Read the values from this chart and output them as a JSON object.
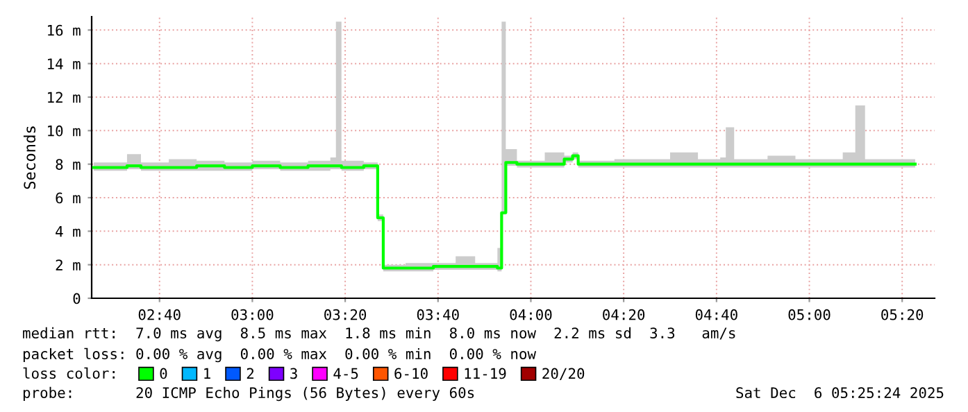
{
  "chart_data": {
    "type": "step",
    "ylabel": "Seconds",
    "legend_title": "loss color:",
    "legend": "bottom",
    "grid": true,
    "line_style": "solid",
    "marker": "none",
    "xlim": [
      2.423,
      5.45
    ],
    "ylim": [
      0,
      16.8
    ],
    "xticks": [
      {
        "value": 2.6667,
        "label": "02:40"
      },
      {
        "value": 3.0,
        "label": "03:00"
      },
      {
        "value": 3.3333,
        "label": "03:20"
      },
      {
        "value": 3.6667,
        "label": "03:40"
      },
      {
        "value": 4.0,
        "label": "04:00"
      },
      {
        "value": 4.3333,
        "label": "04:20"
      },
      {
        "value": 4.6667,
        "label": "04:40"
      },
      {
        "value": 5.0,
        "label": "05:00"
      },
      {
        "value": 5.3333,
        "label": "05:20"
      }
    ],
    "yticks": [
      0,
      {
        "value": 2,
        "label": "2 m"
      },
      {
        "value": 4,
        "label": "4 m"
      },
      {
        "value": 6,
        "label": "6 m"
      },
      {
        "value": 8,
        "label": "8 m"
      },
      {
        "value": 10,
        "label": "10 m"
      },
      {
        "value": 12,
        "label": "12 m"
      },
      {
        "value": 14,
        "label": "14 m"
      },
      {
        "value": 16,
        "label": "16 m"
      }
    ],
    "x": [
      2.43,
      2.5,
      2.55,
      2.6,
      2.7,
      2.8,
      2.9,
      3.0,
      3.1,
      3.2,
      3.28,
      3.3,
      3.32,
      3.4,
      3.45,
      3.47,
      3.55,
      3.65,
      3.73,
      3.8,
      3.88,
      3.895,
      3.91,
      3.95,
      4.05,
      4.12,
      4.15,
      4.17,
      4.3,
      4.4,
      4.5,
      4.6,
      4.68,
      4.7,
      4.73,
      4.85,
      4.95,
      5.05,
      5.12,
      5.165,
      5.2,
      5.3,
      5.38
    ],
    "series": [
      {
        "name": "0",
        "color": "#00ff00",
        "values": [
          7.8,
          7.8,
          7.9,
          7.8,
          7.8,
          7.9,
          7.8,
          7.9,
          7.8,
          7.9,
          7.9,
          7.9,
          7.8,
          7.9,
          4.8,
          1.8,
          1.8,
          1.9,
          1.9,
          1.9,
          1.8,
          5.1,
          8.1,
          8.0,
          8.0,
          8.3,
          8.5,
          8.0,
          8.0,
          8.0,
          8.0,
          8.0,
          8.0,
          8.0,
          8.0,
          8.0,
          8.0,
          8.0,
          8.0,
          8.0,
          8.0,
          8.0,
          8.0
        ],
        "lower": [
          7.6,
          7.6,
          7.7,
          7.6,
          7.6,
          7.6,
          7.6,
          7.7,
          7.6,
          7.6,
          7.7,
          7.7,
          7.6,
          7.7,
          4.6,
          1.6,
          1.6,
          1.7,
          1.7,
          1.7,
          1.6,
          5.0,
          7.9,
          7.8,
          7.8,
          8.1,
          8.3,
          7.8,
          7.8,
          7.8,
          7.8,
          7.8,
          7.8,
          7.8,
          7.8,
          7.8,
          7.8,
          7.8,
          7.8,
          7.8,
          7.8,
          7.8,
          7.8
        ],
        "upper": [
          8.1,
          8.1,
          8.6,
          8.1,
          8.3,
          8.2,
          8.1,
          8.2,
          8.1,
          8.2,
          8.4,
          16.5,
          8.2,
          8.1,
          5.0,
          2.0,
          2.1,
          2.1,
          2.5,
          2.1,
          3.0,
          16.5,
          8.9,
          8.2,
          8.7,
          8.5,
          8.7,
          8.2,
          8.3,
          8.3,
          8.7,
          8.3,
          8.4,
          10.2,
          8.3,
          8.5,
          8.3,
          8.3,
          8.7,
          11.5,
          8.3,
          8.3,
          8.2
        ]
      },
      {
        "name": "1",
        "color": "#00b8ff",
        "values": [
          null,
          null,
          null,
          null,
          null,
          null,
          null,
          null,
          null,
          null,
          null,
          null,
          null,
          null,
          null,
          null,
          null,
          null,
          null,
          null,
          null,
          null,
          null,
          null,
          null,
          null,
          null,
          null,
          null,
          null,
          null,
          null,
          null,
          null,
          null,
          null,
          null,
          null,
          null,
          null,
          null,
          null,
          null
        ]
      },
      {
        "name": "2",
        "color": "#0059ff",
        "values": [
          null,
          null,
          null,
          null,
          null,
          null,
          null,
          null,
          null,
          null,
          null,
          null,
          null,
          null,
          null,
          null,
          null,
          null,
          null,
          null,
          null,
          null,
          null,
          null,
          null,
          null,
          null,
          null,
          null,
          null,
          null,
          null,
          null,
          null,
          null,
          null,
          null,
          null,
          null,
          null,
          null,
          null,
          null
        ]
      },
      {
        "name": "3",
        "color": "#7e00ff",
        "values": [
          null,
          null,
          null,
          null,
          null,
          null,
          null,
          null,
          null,
          null,
          null,
          null,
          null,
          null,
          null,
          null,
          null,
          null,
          null,
          null,
          null,
          null,
          null,
          null,
          null,
          null,
          null,
          null,
          null,
          null,
          null,
          null,
          null,
          null,
          null,
          null,
          null,
          null,
          null,
          null,
          null,
          null,
          null
        ]
      },
      {
        "name": "4-5",
        "color": "#ff00ff",
        "values": [
          null,
          null,
          null,
          null,
          null,
          null,
          null,
          null,
          null,
          null,
          null,
          null,
          null,
          null,
          null,
          null,
          null,
          null,
          null,
          null,
          null,
          null,
          null,
          null,
          null,
          null,
          null,
          null,
          null,
          null,
          null,
          null,
          null,
          null,
          null,
          null,
          null,
          null,
          null,
          null,
          null,
          null,
          null
        ]
      },
      {
        "name": "6-10",
        "color": "#ff5500",
        "values": [
          null,
          null,
          null,
          null,
          null,
          null,
          null,
          null,
          null,
          null,
          null,
          null,
          null,
          null,
          null,
          null,
          null,
          null,
          null,
          null,
          null,
          null,
          null,
          null,
          null,
          null,
          null,
          null,
          null,
          null,
          null,
          null,
          null,
          null,
          null,
          null,
          null,
          null,
          null,
          null,
          null,
          null,
          null
        ]
      },
      {
        "name": "11-19",
        "color": "#ff0000",
        "values": [
          null,
          null,
          null,
          null,
          null,
          null,
          null,
          null,
          null,
          null,
          null,
          null,
          null,
          null,
          null,
          null,
          null,
          null,
          null,
          null,
          null,
          null,
          null,
          null,
          null,
          null,
          null,
          null,
          null,
          null,
          null,
          null,
          null,
          null,
          null,
          null,
          null,
          null,
          null,
          null,
          null,
          null,
          null
        ]
      },
      {
        "name": "20/20",
        "color": "#a10000",
        "values": [
          null,
          null,
          null,
          null,
          null,
          null,
          null,
          null,
          null,
          null,
          null,
          null,
          null,
          null,
          null,
          null,
          null,
          null,
          null,
          null,
          null,
          null,
          null,
          null,
          null,
          null,
          null,
          null,
          null,
          null,
          null,
          null,
          null,
          null,
          null,
          null,
          null,
          null,
          null,
          null,
          null,
          null,
          null
        ]
      }
    ],
    "annotations": [
      "median rtt:  7.0 ms avg  8.5 ms max  1.8 ms min  8.0 ms now  2.2 ms sd  3.3   am/s",
      "packet loss: 0.00 % avg  0.00 % max  0.00 % min  0.00 % now",
      "probe:       20 ICMP Echo Pings (56 Bytes) every 60s",
      "Sat Dec  6 05:25:24 2025"
    ]
  }
}
